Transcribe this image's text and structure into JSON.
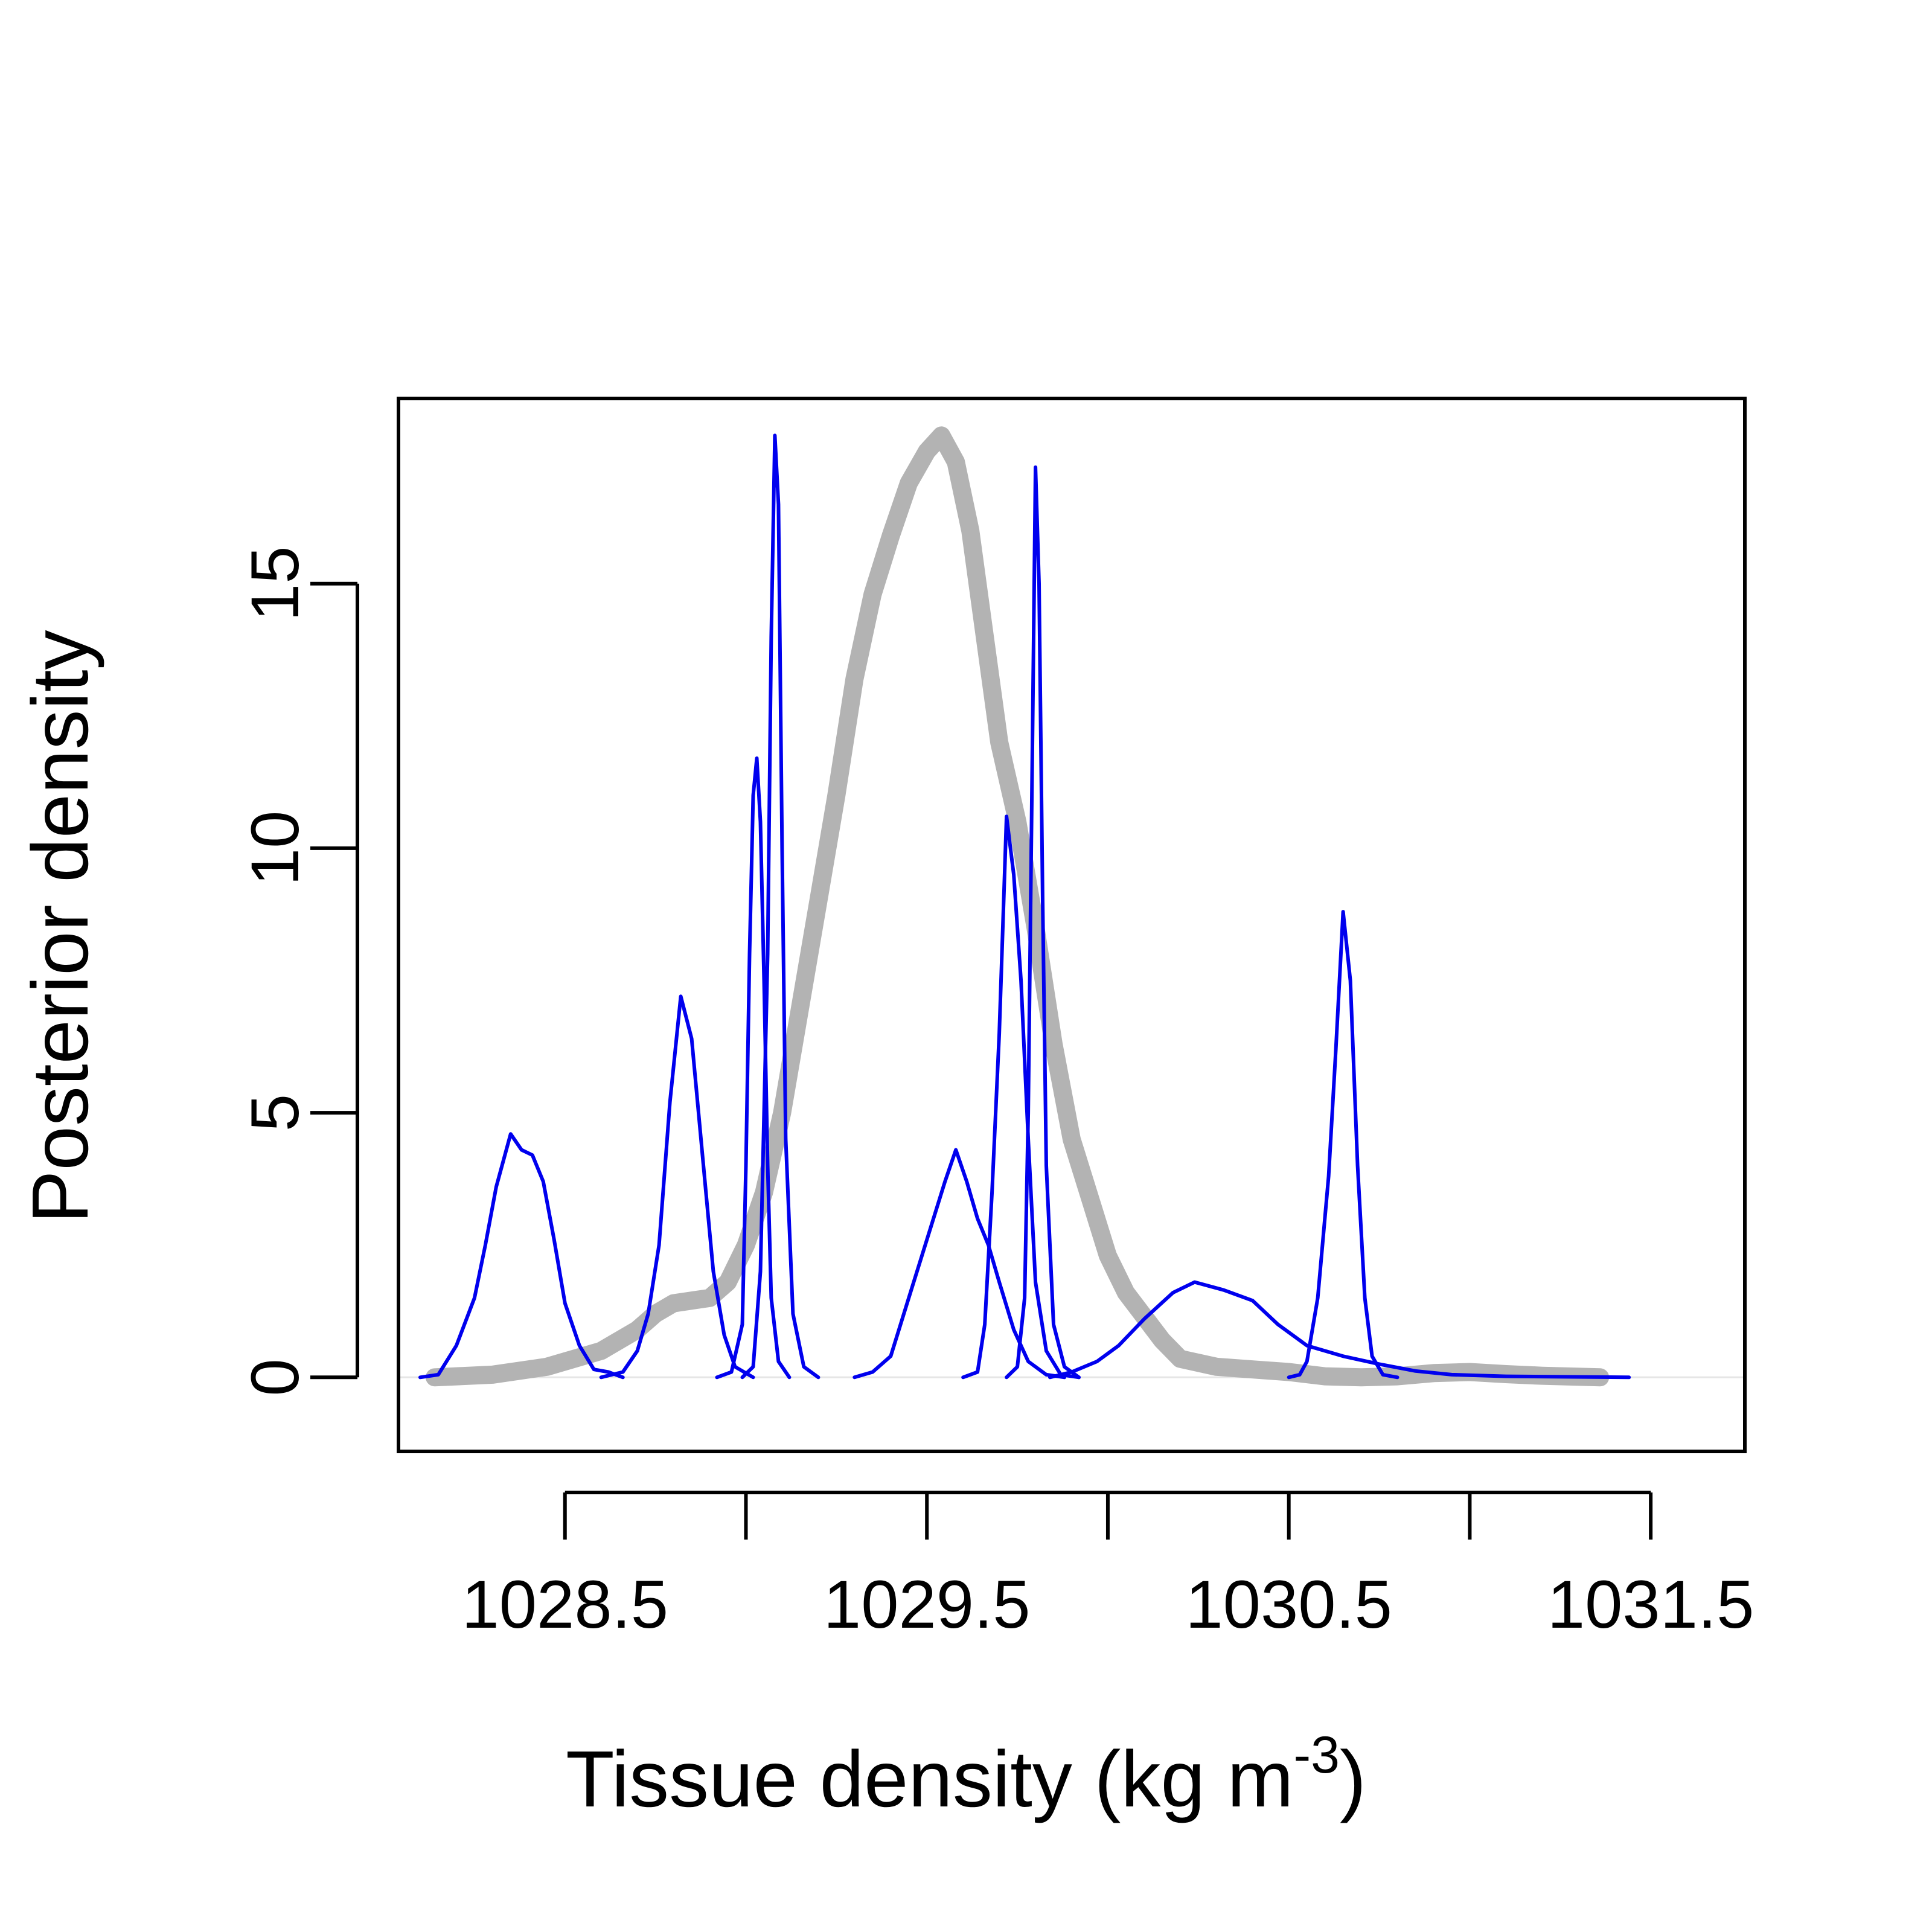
{
  "chart_data": {
    "type": "line",
    "xlabel": "Tissue density (kg m",
    "xlabel_superscript": "-3",
    "xlabel_close": ")",
    "ylabel": "Posterior density",
    "xlim": [
      1028.04,
      1031.76
    ],
    "ylim": [
      -1.4,
      18.5
    ],
    "x_ticks": [
      1028.5,
      1029,
      1029.5,
      1030,
      1030.5,
      1031,
      1031.5
    ],
    "x_tick_labels": [
      "1028.5",
      "",
      "1029.5",
      "",
      "1030.5",
      "",
      "1031.5"
    ],
    "y_ticks": [
      0,
      5,
      10,
      15
    ],
    "y_tick_labels": [
      "0",
      "5",
      "10",
      "15"
    ],
    "grid": false,
    "legend": "none",
    "colors": {
      "overall": "#b3b3b3",
      "individual": "#0000ee",
      "zero_line": "#e6e6e6",
      "axis": "#000000"
    },
    "series": [
      {
        "kind": "overall",
        "points": [
          [
            1028.14,
            0
          ],
          [
            1028.3,
            0.05
          ],
          [
            1028.45,
            0.2
          ],
          [
            1028.6,
            0.5
          ],
          [
            1028.7,
            0.9
          ],
          [
            1028.75,
            1.2
          ],
          [
            1028.8,
            1.4
          ],
          [
            1028.9,
            1.5
          ],
          [
            1028.95,
            1.8
          ],
          [
            1029.0,
            2.5
          ],
          [
            1029.05,
            3.5
          ],
          [
            1029.1,
            5.0
          ],
          [
            1029.15,
            7.0
          ],
          [
            1029.2,
            9.0
          ],
          [
            1029.25,
            11.0
          ],
          [
            1029.3,
            13.2
          ],
          [
            1029.35,
            14.8
          ],
          [
            1029.4,
            15.9
          ],
          [
            1029.45,
            16.9
          ],
          [
            1029.5,
            17.5
          ],
          [
            1029.54,
            17.8
          ],
          [
            1029.58,
            17.3
          ],
          [
            1029.62,
            16.0
          ],
          [
            1029.66,
            14.0
          ],
          [
            1029.7,
            12.0
          ],
          [
            1029.75,
            10.5
          ],
          [
            1029.8,
            8.5
          ],
          [
            1029.85,
            6.3
          ],
          [
            1029.9,
            4.5
          ],
          [
            1029.95,
            3.4
          ],
          [
            1030.0,
            2.3
          ],
          [
            1030.05,
            1.6
          ],
          [
            1030.1,
            1.15
          ],
          [
            1030.15,
            0.7
          ],
          [
            1030.2,
            0.35
          ],
          [
            1030.3,
            0.2
          ],
          [
            1030.4,
            0.15
          ],
          [
            1030.5,
            0.1
          ],
          [
            1030.6,
            0.02
          ],
          [
            1030.7,
            0
          ],
          [
            1030.8,
            0.02
          ],
          [
            1030.9,
            0.08
          ],
          [
            1031.0,
            0.1
          ],
          [
            1031.1,
            0.06
          ],
          [
            1031.2,
            0.03
          ],
          [
            1031.36,
            0
          ]
        ]
      },
      {
        "kind": "individual",
        "points": [
          [
            1028.1,
            0
          ],
          [
            1028.15,
            0.05
          ],
          [
            1028.2,
            0.6
          ],
          [
            1028.25,
            1.5
          ],
          [
            1028.28,
            2.5
          ],
          [
            1028.31,
            3.6
          ],
          [
            1028.35,
            4.6
          ],
          [
            1028.38,
            4.3
          ],
          [
            1028.41,
            4.2
          ],
          [
            1028.44,
            3.7
          ],
          [
            1028.47,
            2.6
          ],
          [
            1028.5,
            1.4
          ],
          [
            1028.54,
            0.6
          ],
          [
            1028.58,
            0.15
          ],
          [
            1028.62,
            0.1
          ],
          [
            1028.66,
            0
          ]
        ]
      },
      {
        "kind": "individual",
        "points": [
          [
            1028.6,
            0
          ],
          [
            1028.66,
            0.1
          ],
          [
            1028.7,
            0.5
          ],
          [
            1028.73,
            1.2
          ],
          [
            1028.76,
            2.5
          ],
          [
            1028.79,
            5.2
          ],
          [
            1028.82,
            7.2
          ],
          [
            1028.85,
            6.4
          ],
          [
            1028.88,
            4.2
          ],
          [
            1028.91,
            2.0
          ],
          [
            1028.94,
            0.8
          ],
          [
            1028.97,
            0.2
          ],
          [
            1029.02,
            0
          ]
        ]
      },
      {
        "kind": "individual",
        "points": [
          [
            1028.92,
            0
          ],
          [
            1028.96,
            0.1
          ],
          [
            1028.99,
            1.0
          ],
          [
            1029.0,
            4.0
          ],
          [
            1029.01,
            8.0
          ],
          [
            1029.02,
            11.0
          ],
          [
            1029.03,
            11.7
          ],
          [
            1029.04,
            10.5
          ],
          [
            1029.05,
            7.5
          ],
          [
            1029.06,
            4.0
          ],
          [
            1029.07,
            1.5
          ],
          [
            1029.09,
            0.3
          ],
          [
            1029.12,
            0
          ]
        ]
      },
      {
        "kind": "individual",
        "points": [
          [
            1028.99,
            0
          ],
          [
            1029.02,
            0.2
          ],
          [
            1029.04,
            2.0
          ],
          [
            1029.06,
            8.0
          ],
          [
            1029.07,
            14.0
          ],
          [
            1029.08,
            17.8
          ],
          [
            1029.09,
            16.5
          ],
          [
            1029.1,
            10.0
          ],
          [
            1029.11,
            4.5
          ],
          [
            1029.13,
            1.2
          ],
          [
            1029.16,
            0.2
          ],
          [
            1029.2,
            0
          ]
        ]
      },
      {
        "kind": "individual",
        "points": [
          [
            1029.3,
            0
          ],
          [
            1029.35,
            0.1
          ],
          [
            1029.4,
            0.4
          ],
          [
            1029.45,
            1.5
          ],
          [
            1029.5,
            2.6
          ],
          [
            1029.55,
            3.7
          ],
          [
            1029.58,
            4.3
          ],
          [
            1029.61,
            3.7
          ],
          [
            1029.64,
            3.0
          ],
          [
            1029.67,
            2.5
          ],
          [
            1029.7,
            1.8
          ],
          [
            1029.74,
            0.9
          ],
          [
            1029.78,
            0.3
          ],
          [
            1029.83,
            0.05
          ],
          [
            1029.88,
            0
          ]
        ]
      },
      {
        "kind": "individual",
        "points": [
          [
            1029.6,
            0
          ],
          [
            1029.64,
            0.1
          ],
          [
            1029.66,
            1.0
          ],
          [
            1029.68,
            3.5
          ],
          [
            1029.7,
            6.5
          ],
          [
            1029.72,
            10.6
          ],
          [
            1029.74,
            9.5
          ],
          [
            1029.76,
            7.5
          ],
          [
            1029.78,
            4.5
          ],
          [
            1029.8,
            1.8
          ],
          [
            1029.83,
            0.5
          ],
          [
            1029.87,
            0.05
          ],
          [
            1029.92,
            0
          ]
        ]
      },
      {
        "kind": "individual",
        "points": [
          [
            1029.72,
            0
          ],
          [
            1029.75,
            0.2
          ],
          [
            1029.77,
            1.5
          ],
          [
            1029.78,
            5.0
          ],
          [
            1029.79,
            11.0
          ],
          [
            1029.8,
            17.2
          ],
          [
            1029.81,
            15.0
          ],
          [
            1029.82,
            9.0
          ],
          [
            1029.83,
            4.0
          ],
          [
            1029.85,
            1.0
          ],
          [
            1029.88,
            0.2
          ],
          [
            1029.92,
            0
          ]
        ]
      },
      {
        "kind": "individual",
        "points": [
          [
            1029.84,
            0
          ],
          [
            1029.9,
            0.1
          ],
          [
            1029.97,
            0.3
          ],
          [
            1030.03,
            0.6
          ],
          [
            1030.1,
            1.1
          ],
          [
            1030.18,
            1.6
          ],
          [
            1030.24,
            1.8
          ],
          [
            1030.32,
            1.65
          ],
          [
            1030.4,
            1.45
          ],
          [
            1030.47,
            1.0
          ],
          [
            1030.55,
            0.6
          ],
          [
            1030.65,
            0.4
          ],
          [
            1030.75,
            0.25
          ],
          [
            1030.85,
            0.12
          ],
          [
            1030.95,
            0.05
          ],
          [
            1031.1,
            0.02
          ],
          [
            1031.44,
            0
          ]
        ]
      },
      {
        "kind": "individual",
        "points": [
          [
            1030.5,
            0
          ],
          [
            1030.53,
            0.05
          ],
          [
            1030.55,
            0.3
          ],
          [
            1030.58,
            1.5
          ],
          [
            1030.61,
            3.8
          ],
          [
            1030.63,
            6.2
          ],
          [
            1030.65,
            8.8
          ],
          [
            1030.67,
            7.5
          ],
          [
            1030.69,
            4.0
          ],
          [
            1030.71,
            1.5
          ],
          [
            1030.73,
            0.4
          ],
          [
            1030.76,
            0.05
          ],
          [
            1030.8,
            0
          ]
        ]
      }
    ]
  }
}
